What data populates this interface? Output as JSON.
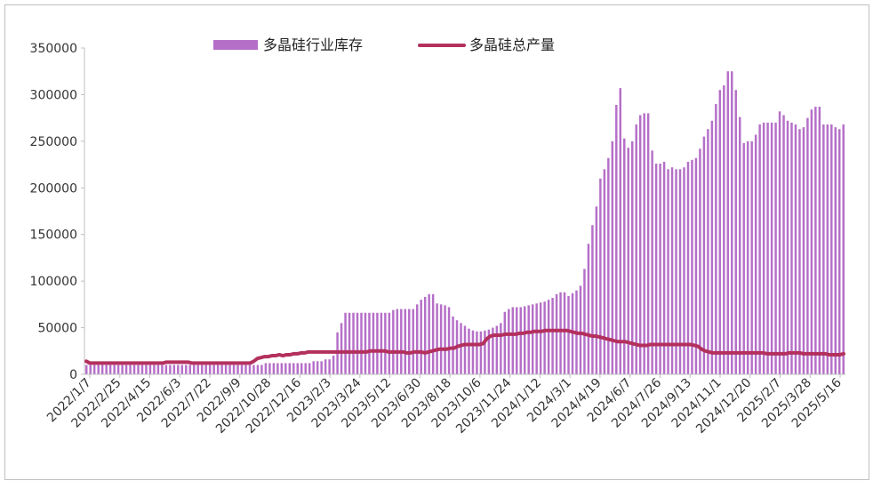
{
  "colors": {
    "bar": "#b56fc8",
    "line": "#b3305d",
    "axis": "#bfbfbf",
    "text": "#333333"
  },
  "chart_data": {
    "type": "bar",
    "title": "",
    "xlabel": "",
    "ylabel": "",
    "ylim": [
      0,
      350000
    ],
    "yticks": [
      "0",
      "50000",
      "100000",
      "150000",
      "200000",
      "250000",
      "300000",
      "350000"
    ],
    "grid": false,
    "legend_position": "top",
    "xtick_labels": [
      "2022/1/7",
      "2022/2/25",
      "2022/4/15",
      "2022/6/3",
      "2022/7/22",
      "2022/9/9",
      "2022/10/28",
      "2022/12/16",
      "2023/2/3",
      "2023/3/24",
      "2023/5/12",
      "2023/6/30",
      "2023/8/18",
      "2023/10/6",
      "2023/11/24",
      "2024/1/12",
      "2024/3/1",
      "2024/4/19",
      "2024/6/7",
      "2024/7/26",
      "2024/9/13",
      "2024/11/1",
      "2024/12/20",
      "2025/2/7",
      "2025/3/28",
      "2025/5/16"
    ],
    "series": [
      {
        "name": "多晶硅行业库存",
        "kind": "bar",
        "values": [
          10000,
          10000,
          10000,
          10000,
          10000,
          10000,
          10000,
          10000,
          10000,
          10000,
          10000,
          10000,
          10000,
          10000,
          10000,
          10000,
          10000,
          10000,
          10000,
          10000,
          10000,
          10000,
          10000,
          10000,
          10000,
          10000,
          10000,
          10000,
          10000,
          10000,
          10000,
          10000,
          10000,
          10000,
          10000,
          10000,
          10000,
          10000,
          10000,
          10000,
          10000,
          10000,
          10000,
          10000,
          10000,
          12000,
          12000,
          12000,
          12000,
          12000,
          12000,
          12000,
          12000,
          12000,
          12000,
          12000,
          12000,
          14000,
          14000,
          14000,
          16000,
          16000,
          20000,
          45000,
          55000,
          66000,
          66000,
          66000,
          66000,
          66000,
          66000,
          66000,
          66000,
          66000,
          66000,
          66000,
          66000,
          69000,
          70000,
          70000,
          70000,
          70000,
          70000,
          75000,
          80000,
          83000,
          86000,
          86000,
          76000,
          75000,
          74000,
          72000,
          62000,
          58000,
          55000,
          52000,
          49000,
          47000,
          46000,
          46000,
          47000,
          48000,
          50000,
          52000,
          55000,
          67000,
          70000,
          72000,
          72000,
          72000,
          73000,
          74000,
          75000,
          76000,
          77000,
          78000,
          80000,
          82000,
          86000,
          88000,
          88000,
          84000,
          87000,
          90000,
          95000,
          113000,
          140000,
          160000,
          180000,
          210000,
          220000,
          232000,
          250000,
          289000,
          307000,
          253000,
          243000,
          250000,
          268000,
          278000,
          280000,
          280000,
          240000,
          226000,
          226000,
          228000,
          220000,
          222000,
          220000,
          220000,
          222000,
          228000,
          230000,
          232000,
          242000,
          255000,
          263000,
          272000,
          290000,
          305000,
          310000,
          325000,
          325000,
          305000,
          276000,
          248000,
          250000,
          250000,
          257000,
          268000,
          270000,
          270000,
          270000,
          270000,
          282000,
          278000,
          272000,
          270000,
          268000,
          263000,
          265000,
          275000,
          284000,
          287000,
          287000,
          268000,
          268000,
          268000,
          265000,
          263000,
          268000
        ]
      },
      {
        "name": "多晶硅总产量",
        "kind": "line",
        "values": [
          14000,
          12000,
          12000,
          12000,
          12000,
          12000,
          12000,
          12000,
          12000,
          12000,
          12000,
          12000,
          12000,
          12000,
          12000,
          12000,
          12000,
          12000,
          12000,
          12000,
          12000,
          12000,
          13000,
          13000,
          13000,
          13000,
          13000,
          13000,
          13000,
          12000,
          12000,
          12000,
          12000,
          12000,
          12000,
          12000,
          12000,
          12000,
          12000,
          12000,
          12000,
          12000,
          12000,
          12000,
          12000,
          12000,
          14000,
          17000,
          18000,
          19000,
          19000,
          20000,
          20000,
          21000,
          20000,
          21000,
          21000,
          22000,
          22000,
          23000,
          23000,
          24000,
          24000,
          24000,
          24000,
          24000,
          24000,
          24000,
          24000,
          24000,
          24000,
          24000,
          24000,
          24000,
          24000,
          24000,
          24000,
          24000,
          25000,
          25000,
          25000,
          25000,
          25000,
          24000,
          24000,
          24000,
          24000,
          24000,
          23000,
          23000,
          24000,
          24000,
          24000,
          23000,
          24000,
          25000,
          26000,
          27000,
          27000,
          27000,
          28000,
          28000,
          30000,
          31000,
          32000,
          32000,
          32000,
          32000,
          32000,
          33000,
          38000,
          41000,
          42000,
          42000,
          42000,
          43000,
          43000,
          43000,
          43000,
          44000,
          44000,
          45000,
          45000,
          46000,
          46000,
          46000,
          47000,
          47000,
          47000,
          47000,
          47000,
          47000,
          47000,
          46000,
          45000,
          44000,
          44000,
          43000,
          42000,
          41000,
          41000,
          40000,
          39000,
          38000,
          37000,
          36000,
          35000,
          35000,
          35000,
          34000,
          33000,
          32000,
          31000,
          31000,
          31000,
          32000,
          32000,
          32000,
          32000,
          32000,
          32000,
          32000,
          32000,
          32000,
          32000,
          32000,
          32000,
          31000,
          30000,
          27000,
          25000,
          24000,
          23000,
          23000,
          23000,
          23000,
          23000,
          23000,
          23000,
          23000,
          23000,
          23000,
          23000,
          23000,
          23000,
          23000,
          23000,
          22000,
          22000,
          22000,
          22000,
          22000,
          22000,
          23000,
          23000,
          23000,
          23000,
          22000,
          22000,
          22000,
          22000,
          22000,
          22000,
          22000,
          21000,
          21000,
          21000,
          21000,
          22000
        ]
      }
    ]
  }
}
